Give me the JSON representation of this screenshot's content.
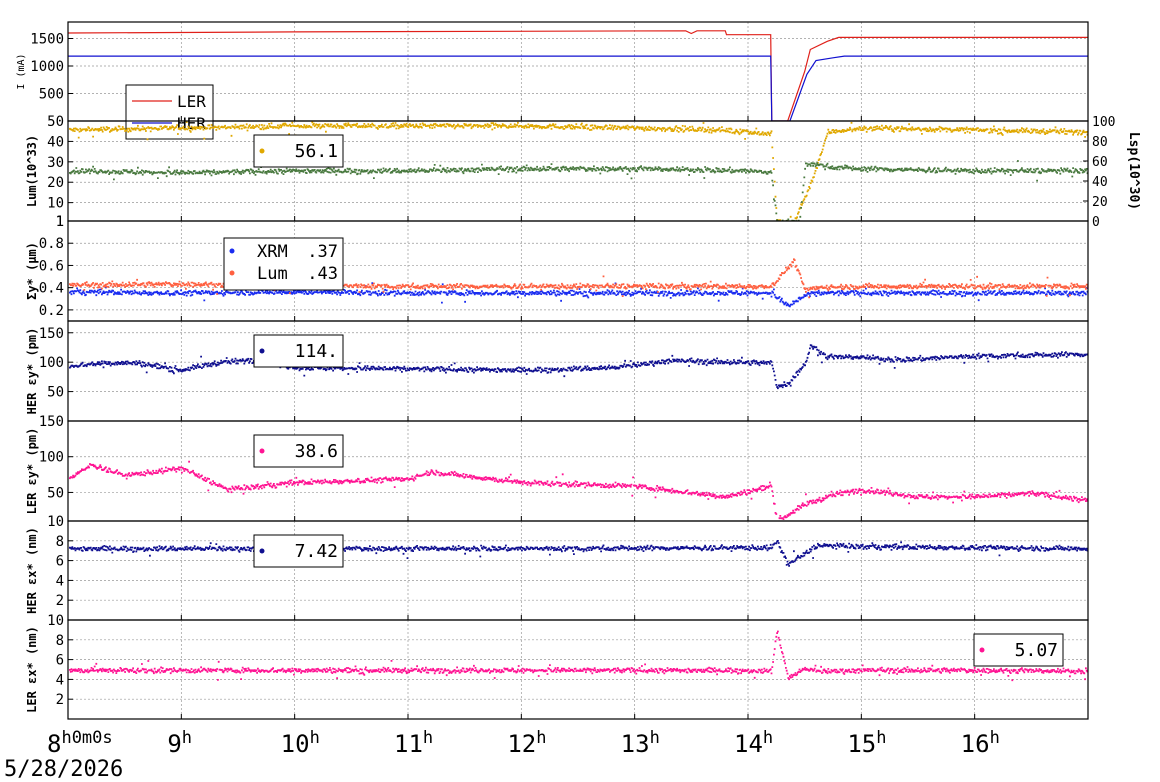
{
  "date_label": "5/28/2026",
  "time_axis": {
    "start_hour": 8,
    "end_hour": 17,
    "first_tick_label": "8h0m0s",
    "tick_labels": [
      {
        "hour": 8,
        "main": "8",
        "sup": "h0m0s"
      },
      {
        "hour": 9,
        "main": "9",
        "sup": "h"
      },
      {
        "hour": 10,
        "main": "10",
        "sup": "h"
      },
      {
        "hour": 11,
        "main": "11",
        "sup": "h"
      },
      {
        "hour": 12,
        "main": "12",
        "sup": "h"
      },
      {
        "hour": 13,
        "main": "13",
        "sup": "h"
      },
      {
        "hour": 14,
        "main": "14",
        "sup": "h"
      },
      {
        "hour": 15,
        "main": "15",
        "sup": "h"
      },
      {
        "hour": 16,
        "main": "16",
        "sup": "h"
      }
    ]
  },
  "chart_data": [
    {
      "type": "line",
      "ylabel": "I (mA)",
      "ylim": [
        0,
        1800
      ],
      "yticks": [
        500,
        1000,
        1500
      ],
      "grid": true,
      "legend": "LER/HER box, lower-left",
      "series": [
        {
          "name": "LER",
          "color": "#e0201a",
          "style": "line",
          "x": [
            8.0,
            10.0,
            13.45,
            13.5,
            13.55,
            13.8,
            13.81,
            14.2,
            14.21,
            14.35,
            14.5,
            14.55,
            14.7,
            14.8,
            17.0
          ],
          "y": [
            1600,
            1620,
            1640,
            1590,
            1640,
            1640,
            1570,
            1570,
            0,
            0,
            900,
            1300,
            1450,
            1520,
            1520
          ]
        },
        {
          "name": "HER",
          "color": "#1010d0",
          "style": "line",
          "x": [
            8.0,
            14.2,
            14.21,
            14.37,
            14.52,
            14.6,
            14.75,
            14.85,
            17.0
          ],
          "y": [
            1180,
            1180,
            0,
            0,
            850,
            1100,
            1150,
            1180,
            1180
          ]
        }
      ]
    },
    {
      "type": "scatter",
      "ylabel": "Lum(10^33)",
      "ylim": [
        1,
        50
      ],
      "yticks": [
        1,
        10,
        20,
        30,
        40,
        50
      ],
      "y2label": "Lsp(10^30)",
      "y2lim": [
        0,
        100
      ],
      "y2ticks": [
        0,
        20,
        40,
        60,
        80,
        100
      ],
      "legend": "box near 9.7h",
      "legend_text": "56.1",
      "series": [
        {
          "name": "",
          "color": "#e0a800",
          "x": [
            8.0,
            9.0,
            10.0,
            11.0,
            12.0,
            13.0,
            13.8,
            14.2,
            14.25,
            14.4,
            14.55,
            14.7,
            15.0,
            16.0,
            17.0
          ],
          "y": [
            46,
            47,
            48,
            48,
            48,
            47,
            46,
            44,
            1,
            1,
            20,
            45,
            47,
            46,
            45
          ]
        },
        {
          "name": "",
          "color": "#4a7a40",
          "x": [
            8.0,
            9.0,
            10.0,
            11.0,
            12.0,
            13.0,
            14.0,
            14.2,
            14.25,
            14.45,
            14.5,
            14.7,
            15.0,
            16.0,
            17.0
          ],
          "y": [
            26,
            25,
            26,
            26,
            27,
            27,
            26,
            25,
            1,
            1,
            30,
            28,
            27,
            26,
            26
          ]
        }
      ]
    },
    {
      "type": "scatter",
      "ylabel": "Σy* (μm)",
      "ylim": [
        0.1,
        1.0
      ],
      "yticks": [
        0.2,
        0.4,
        0.6,
        0.8,
        1
      ],
      "legend": "box near 9.4h",
      "series": [
        {
          "name": "XRM",
          "legend_value": ".37",
          "color": "#1a2cf0",
          "x": [
            8.0,
            9.0,
            10.0,
            11.0,
            12.0,
            13.0,
            14.2,
            14.35,
            14.5,
            14.6,
            15.0,
            16.0,
            17.0
          ],
          "y": [
            0.37,
            0.36,
            0.37,
            0.36,
            0.36,
            0.36,
            0.36,
            0.24,
            0.34,
            0.36,
            0.36,
            0.36,
            0.36
          ]
        },
        {
          "name": "Lum",
          "legend_value": ".43",
          "color": "#ff6040",
          "x": [
            8.0,
            9.0,
            10.0,
            11.0,
            12.0,
            13.0,
            14.2,
            14.4,
            14.5,
            14.6,
            15.0,
            16.0,
            17.0
          ],
          "y": [
            0.43,
            0.44,
            0.43,
            0.42,
            0.42,
            0.42,
            0.42,
            0.65,
            0.38,
            0.41,
            0.42,
            0.42,
            0.42
          ]
        }
      ]
    },
    {
      "type": "scatter",
      "ylabel": "HER εy* (pm)",
      "ylim": [
        0,
        170
      ],
      "yticks": [
        50,
        100,
        150
      ],
      "legend": "box near 9.7h",
      "legend_text": "114.",
      "series": [
        {
          "name": "",
          "color": "#101090",
          "x": [
            8.0,
            8.3,
            8.6,
            9.0,
            9.3,
            9.6,
            10.0,
            11.0,
            12.0,
            12.8,
            13.3,
            14.2,
            14.25,
            14.35,
            14.5,
            14.55,
            14.7,
            15.0,
            15.3,
            16.0,
            17.0
          ],
          "y": [
            95,
            100,
            100,
            88,
            100,
            105,
            92,
            90,
            88,
            92,
            104,
            100,
            60,
            65,
            100,
            130,
            110,
            110,
            105,
            112,
            115
          ]
        }
      ]
    },
    {
      "type": "scatter",
      "ylabel": "LER εy* (pm)",
      "ylim": [
        10,
        150
      ],
      "yticks": [
        10,
        50,
        100,
        150
      ],
      "legend": "box near 9.7h",
      "legend_text": "38.6",
      "series": [
        {
          "name": "",
          "color": "#ff1493",
          "x": [
            8.0,
            8.2,
            8.5,
            9.0,
            9.4,
            10.0,
            11.0,
            11.2,
            12.0,
            13.0,
            13.8,
            14.2,
            14.25,
            14.35,
            14.5,
            14.8,
            15.0,
            15.5,
            16.0,
            16.5,
            17.0
          ],
          "y": [
            70,
            90,
            75,
            85,
            55,
            65,
            70,
            80,
            65,
            60,
            45,
            60,
            12,
            20,
            35,
            50,
            55,
            45,
            45,
            50,
            40
          ]
        }
      ]
    },
    {
      "type": "scatter",
      "ylabel": "HER εx* (nm)",
      "ylim": [
        0,
        10
      ],
      "yticks": [
        2,
        4,
        6,
        8
      ],
      "legend": "box near 9.7h",
      "legend_text": "7.42",
      "series": [
        {
          "name": "",
          "color": "#101090",
          "x": [
            8.0,
            10.0,
            12.0,
            14.2,
            14.25,
            14.35,
            14.5,
            14.6,
            15.0,
            16.0,
            17.0
          ],
          "y": [
            7.3,
            7.3,
            7.3,
            7.4,
            8.0,
            5.7,
            6.8,
            7.6,
            7.5,
            7.4,
            7.3
          ]
        }
      ]
    },
    {
      "type": "scatter",
      "ylabel": "LER εx* (nm)",
      "ylim": [
        0,
        10
      ],
      "yticks": [
        2,
        4,
        6,
        8,
        10
      ],
      "legend": "box near 16.0h",
      "legend_text": "5.07",
      "series": [
        {
          "name": "",
          "color": "#ff1493",
          "x": [
            8.0,
            10.0,
            12.0,
            14.0,
            14.2,
            14.25,
            14.35,
            14.5,
            14.6,
            15.0,
            16.0,
            17.0
          ],
          "y": [
            5.0,
            5.0,
            5.0,
            5.0,
            4.9,
            9.0,
            4.2,
            5.2,
            4.9,
            5.0,
            5.0,
            4.9
          ]
        }
      ]
    }
  ]
}
